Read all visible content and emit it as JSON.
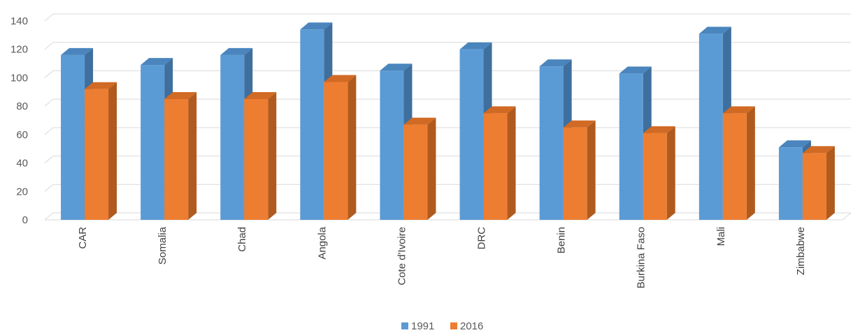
{
  "chart_data": {
    "type": "bar",
    "title": "",
    "xlabel": "",
    "ylabel": "",
    "ylim": [
      0,
      140
    ],
    "y_ticks": [
      0,
      20,
      40,
      60,
      80,
      100,
      120,
      140
    ],
    "grid": true,
    "legend_position": "bottom",
    "categories": [
      "CAR",
      "Somalia",
      "Chad",
      "Angola",
      "Cote d'Ivoire",
      "DRC",
      "Benin",
      "Burkina Faso",
      "Mali",
      "Zimbabwe"
    ],
    "series": [
      {
        "name": "1991",
        "color": "#5b9bd5",
        "side_color": "#3e6f9e",
        "top_color": "#4a85bd",
        "values": [
          116,
          109,
          116,
          134,
          105,
          120,
          108,
          103,
          131,
          51
        ]
      },
      {
        "name": "2016",
        "color": "#ed7d31",
        "side_color": "#b05a1e",
        "top_color": "#d06a24",
        "values": [
          92,
          85,
          85,
          97,
          67,
          75,
          65,
          61,
          75,
          47
        ]
      }
    ]
  }
}
